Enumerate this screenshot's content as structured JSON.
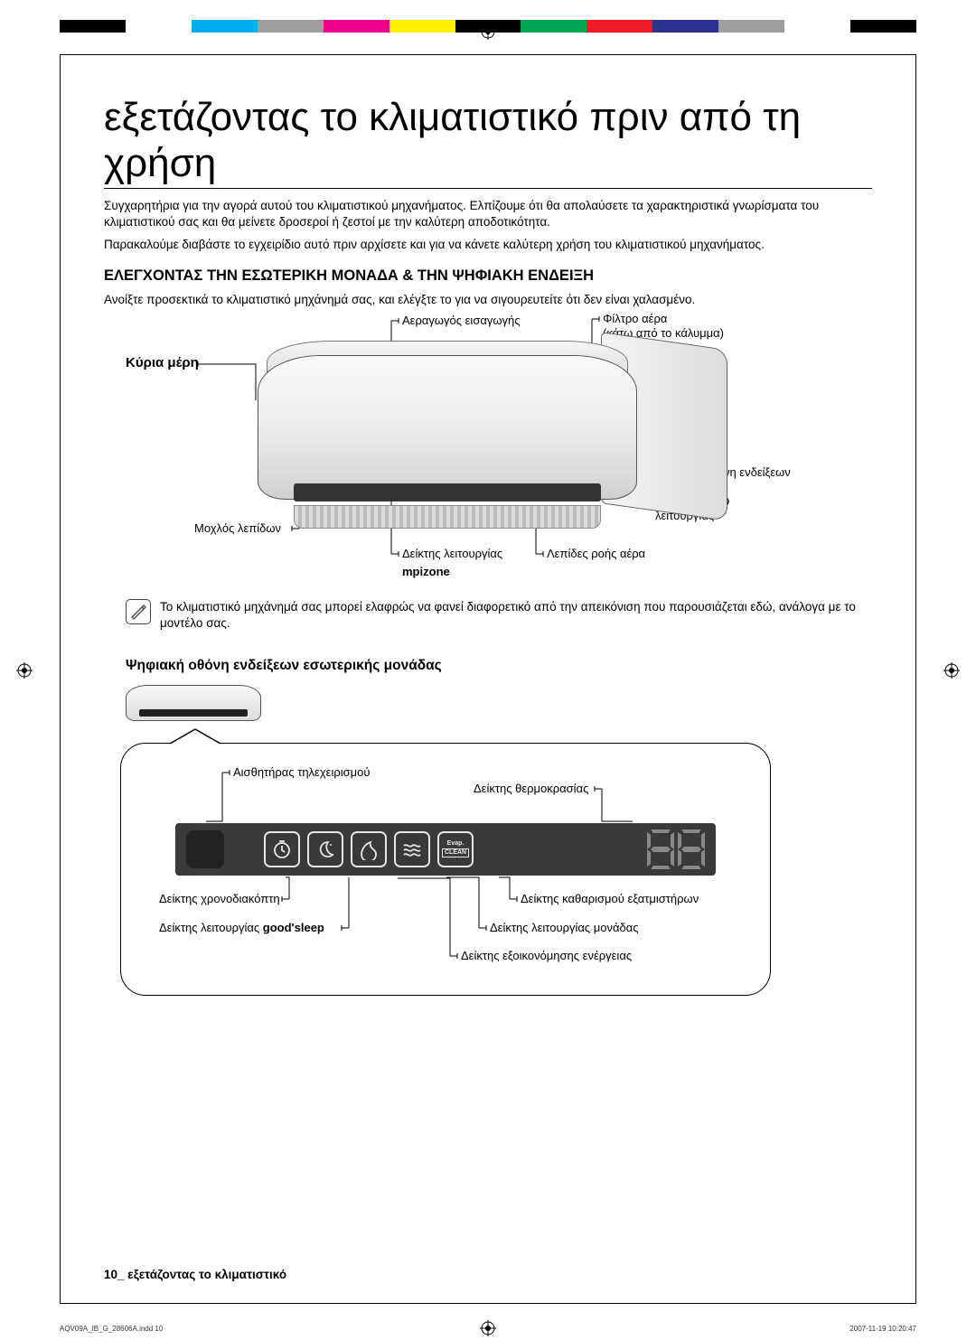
{
  "colorbar": [
    "#000000",
    "#ffffff",
    "#00aeef",
    "#9e9e9e",
    "#ec008c",
    "#fff200",
    "#000000",
    "#00a651",
    "#ed1c24",
    "#2e3192",
    "#9e9e9e",
    "#ffffff",
    "#000000"
  ],
  "title": "εξετάζοντας το κλιματιστικό πριν από τη χρήση",
  "intro": {
    "p1": "Συγχαρητήρια για την αγορά αυτού του κλιματιστικού μηχανήματος. Ελπίζουμε ότι θα απολαύσετε τα χαρακτηριστικά γνωρίσματα του κλιματιστικού σας και θα μείνετε δροσεροί ή ζεστοί με την καλύτερη αποδοτικότητα.",
    "p2": "Παρακαλούμε διαβάστε το εγχειρίδιο αυτό πριν αρχίσετε και για να κάνετε καλύτερη χρήση του κλιματιστικού μηχανήματος."
  },
  "section_h": "ΕΛΕΓΧΟΝΤΑΣ ΤΗΝ ΕΣΩΤΕΡΙΚΗ ΜΟΝΑΔΑ & ΤΗΝ ΨΗΦΙΑΚΗ ΕΝΔΕΙΞΗ",
  "section_p": "Ανοίξτε προσεκτικά το κλιματιστικό μηχάνημά σας, και ελέγξτε το για να σιγουρευτείτε ότι δεν είναι χαλασμένο.",
  "main_parts": {
    "title": "Κύρια μέρη",
    "air_intake": "Αεραγωγός εισαγωγής",
    "air_filter_1": "Φίλτρο αέρα",
    "air_filter_2": "(κάτω από το κάλυμμα)",
    "display": "Ψηφιακή οθόνη ενδείξεων",
    "power_switch_1": "Διακόπτης",
    "power_switch_2": "λειτουργίας",
    "blade_lever": "Μοχλός λεπίδων",
    "op_indicator": "Δείκτης λειτουργίας",
    "airflow_blades": "Λεπίδες ροής αέρα",
    "mpizone": "mpizone"
  },
  "note": "Το κλιματιστικό μηχάνημά σας μπορεί ελαφρώς να φανεί διαφορετικό από την απεικόνιση που παρουσιάζεται εδώ, ανάλογα με το μοντέλο σας.",
  "sub_h": "Ψηφιακή οθόνη ενδείξεων εσωτερικής μονάδας",
  "display_labels": {
    "remote_sensor": "Αισθητήρας τηλεχειρισμού",
    "temp_indicator": "Δείκτης θερμοκρασίας",
    "timer_indicator": "Δείκτης χρονοδιακόπτη",
    "evap_clean": "Δείκτης καθαρισμού εξατμιστήρων",
    "goodsleep": "Δείκτης λειτουργίας good'sleep",
    "unit_op": "Δείκτης λειτουργίας μονάδας",
    "energy_save": "Δείκτης εξοικονόμησης ενέργειας",
    "goodsleep_bold": "good'sleep",
    "evap_word": "Evap.",
    "clean_word": "CLEAN"
  },
  "footer": {
    "num": "10_",
    "text": " εξετάζοντας το κλιματιστικό"
  },
  "print_footer": {
    "left": "AQV09A_IB_G_28606A.indd   10",
    "right": "2007-11-19   10:20:47"
  }
}
